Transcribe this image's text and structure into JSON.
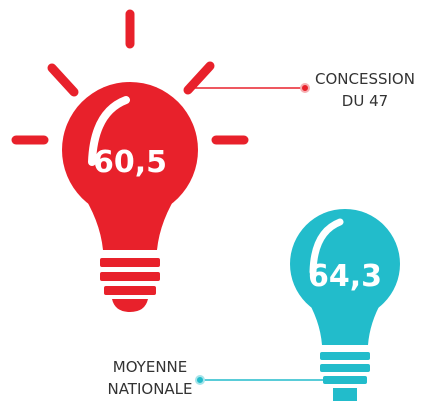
{
  "bulbs": [
    {
      "value": "60,5",
      "label": [
        "CONCESSION",
        "DU 47"
      ]
    },
    {
      "value": "64,3",
      "label": [
        "MOYENNE",
        "NATIONALE"
      ]
    }
  ]
}
